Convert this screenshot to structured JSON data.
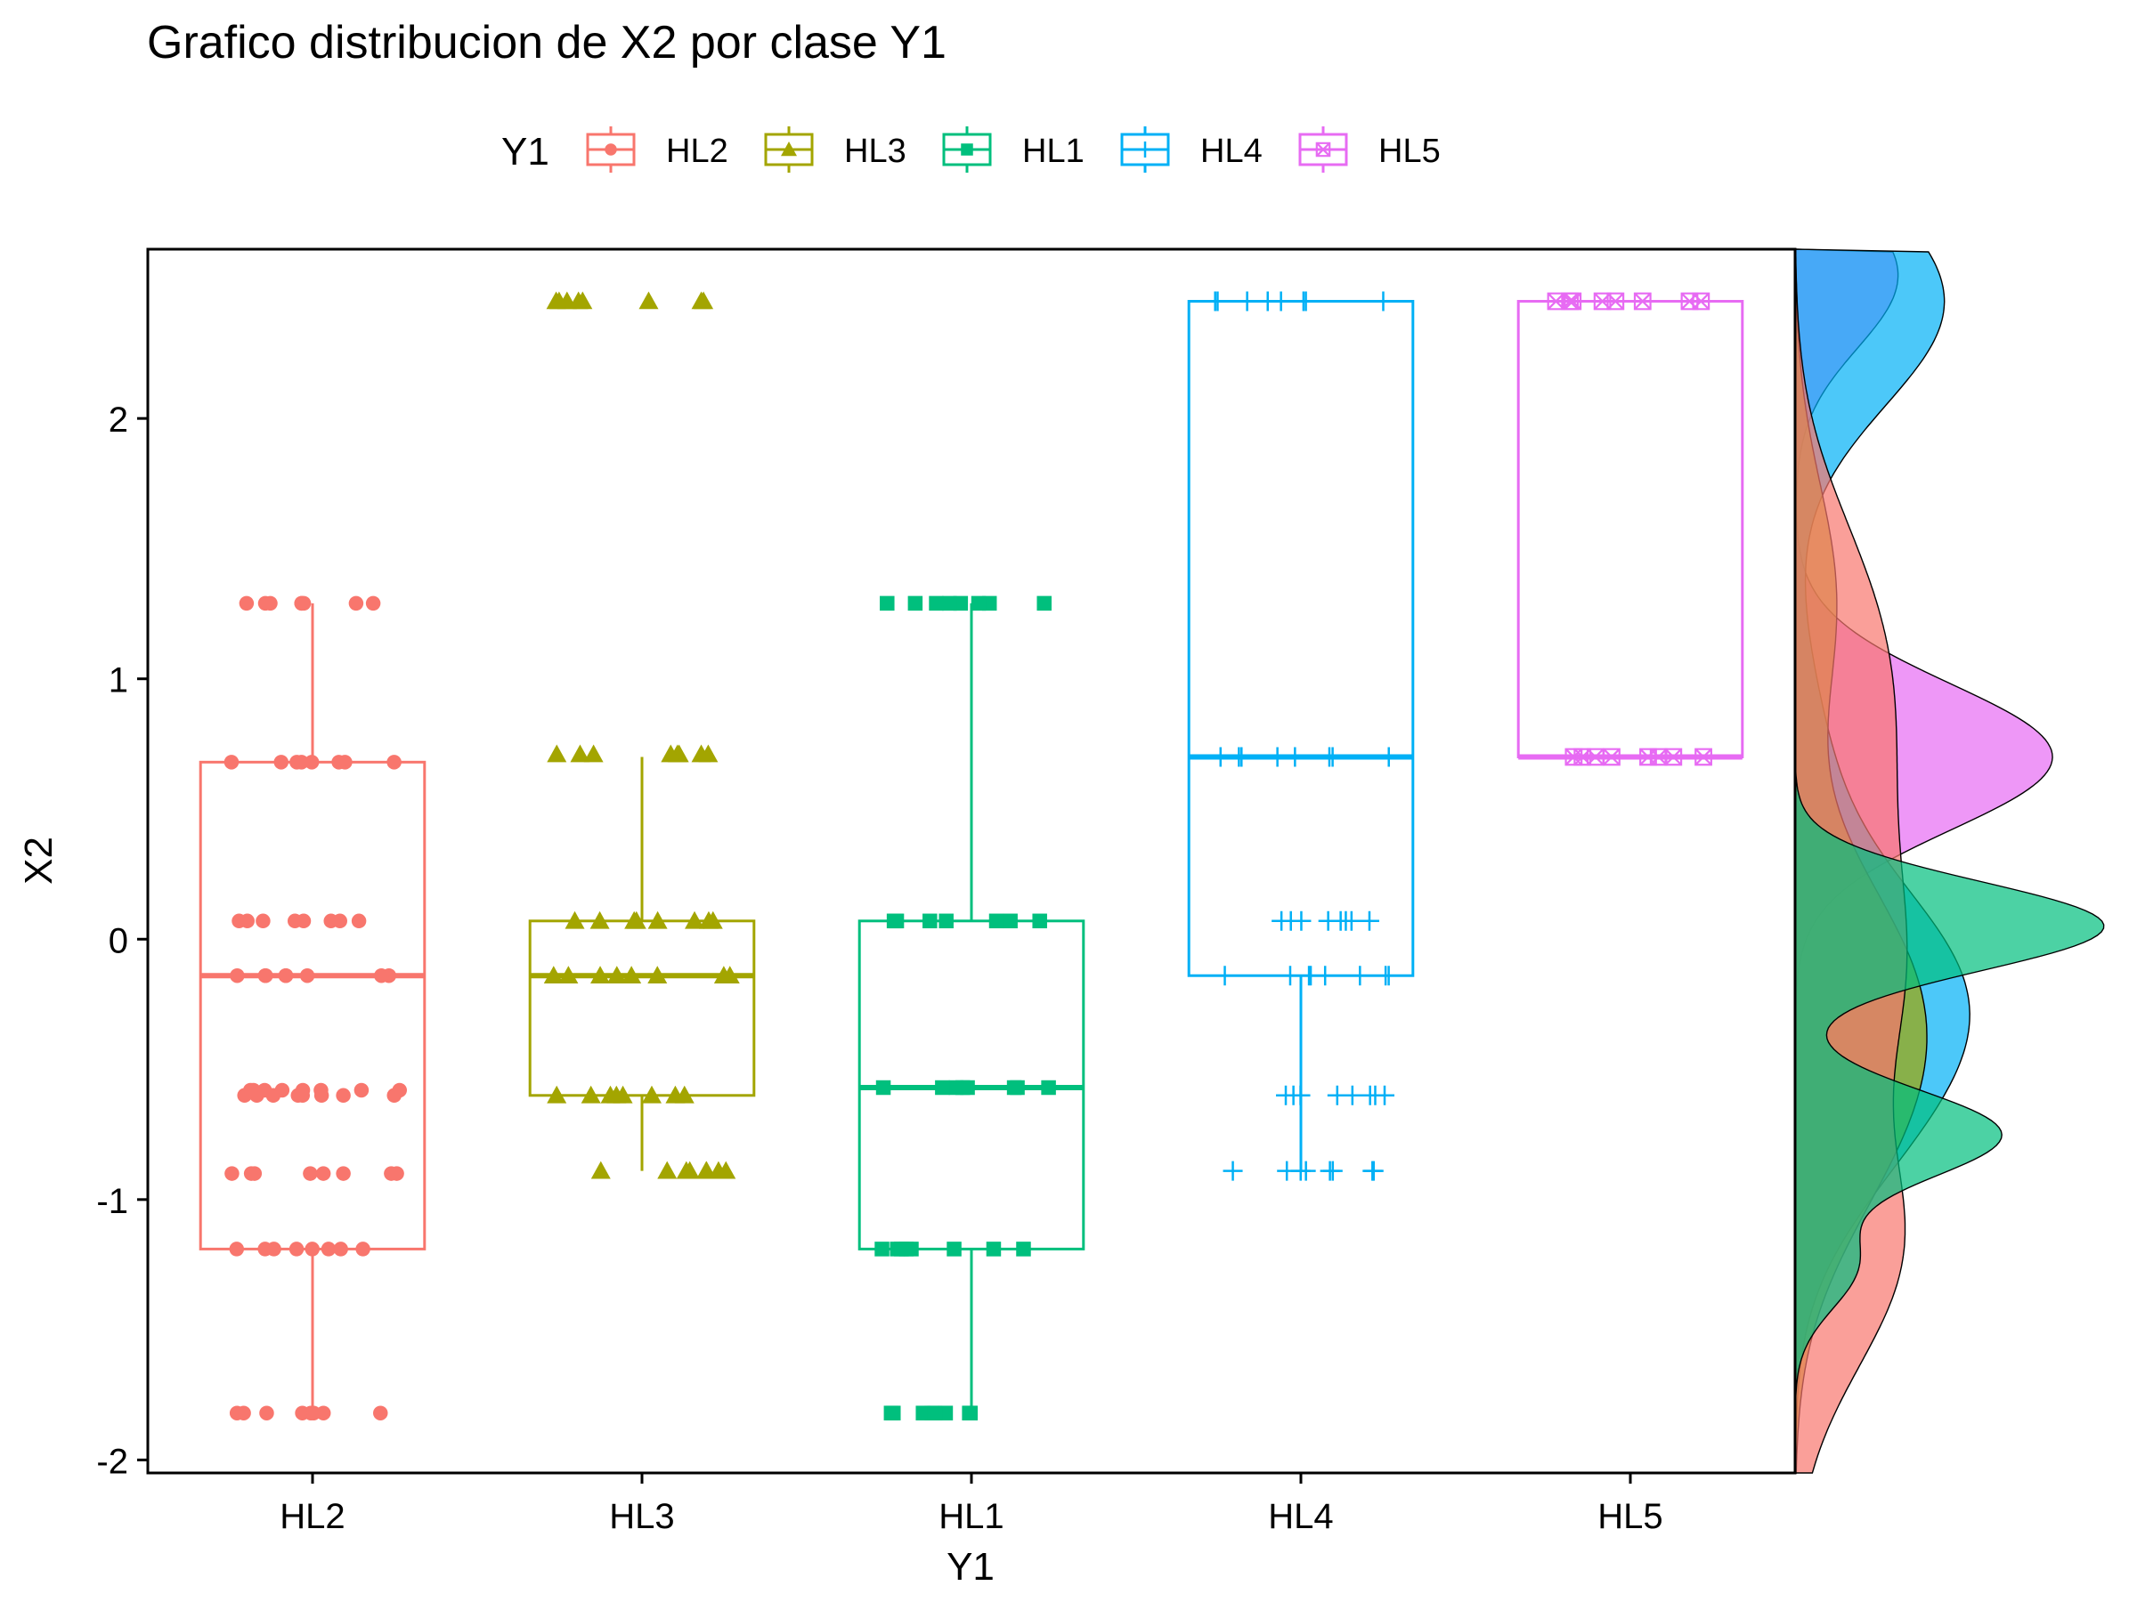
{
  "chart_data": {
    "type": "boxplot",
    "title": "Grafico distribucion de X2 por clase Y1",
    "xlabel": "Y1",
    "ylabel": "X2",
    "ylim": [
      -2.05,
      2.65
    ],
    "yticks": [
      -2,
      -1,
      0,
      1,
      2
    ],
    "tick_labels": [
      "-2",
      "-1",
      "0",
      "1",
      "2"
    ],
    "categories": [
      "HL2",
      "HL3",
      "HL1",
      "HL4",
      "HL5"
    ],
    "legend": {
      "title": "Y1",
      "position": "top",
      "entries": [
        "HL2",
        "HL3",
        "HL1",
        "HL4",
        "HL5"
      ]
    },
    "colors": {
      "HL2": "#F8766D",
      "HL3": "#A3A500",
      "HL1": "#00BF7D",
      "HL4": "#00B0F6",
      "HL5": "#E76BF3"
    },
    "markers": {
      "HL2": "circle",
      "HL3": "triangle",
      "HL1": "square",
      "HL4": "plus",
      "HL5": "square-cross"
    },
    "series": [
      {
        "name": "HL2",
        "whisker_low": -1.82,
        "q1": -1.19,
        "median": -0.14,
        "q3": 0.68,
        "whisker_high": 1.29,
        "points": [
          -1.82,
          -1.19,
          -0.9,
          -0.6,
          -0.58,
          -0.14,
          0.07,
          0.68,
          1.29
        ]
      },
      {
        "name": "HL3",
        "whisker_low": -0.89,
        "q1": -0.6,
        "median": -0.14,
        "q3": 0.07,
        "whisker_high": 0.7,
        "points": [
          -0.89,
          -0.6,
          -0.14,
          0.07,
          0.71,
          2.45
        ]
      },
      {
        "name": "HL1",
        "whisker_low": -1.82,
        "q1": -1.19,
        "median": -0.57,
        "q3": 0.07,
        "whisker_high": 1.29,
        "points": [
          -1.82,
          -1.19,
          -0.57,
          0.07,
          1.29
        ]
      },
      {
        "name": "HL4",
        "whisker_low": -0.89,
        "q1": -0.14,
        "median": 0.7,
        "q3": 2.45,
        "whisker_high": 2.45,
        "points": [
          -0.89,
          -0.6,
          -0.14,
          0.07,
          0.7,
          2.45
        ]
      },
      {
        "name": "HL5",
        "whisker_low": 0.7,
        "q1": 0.7,
        "median": 0.7,
        "q3": 2.45,
        "whisker_high": 2.45,
        "points": [
          0.7,
          2.45
        ]
      }
    ],
    "marginal_density": {
      "side": "right",
      "series": [
        {
          "name": "HL5",
          "peaks": [
            {
              "y": 2.55,
              "d": 1.0
            },
            {
              "y": 0.7,
              "d": 2.5
            }
          ],
          "spread": 0.28
        },
        {
          "name": "HL4",
          "peaks": [
            {
              "y": 2.45,
              "d": 1.45
            },
            {
              "y": -0.14,
              "d": 1.3
            },
            {
              "y": 0.7,
              "d": 0.25
            },
            {
              "y": -0.7,
              "d": 0.8
            }
          ],
          "spread": 0.4
        },
        {
          "name": "HL3",
          "peaks": [
            {
              "y": -0.14,
              "d": 0.9
            },
            {
              "y": -0.75,
              "d": 0.7
            },
            {
              "y": 1.3,
              "d": 0.4
            }
          ],
          "spread": 0.45
        },
        {
          "name": "HL2",
          "peaks": [
            {
              "y": -1.2,
              "d": 1.0
            },
            {
              "y": -0.14,
              "d": 0.9
            },
            {
              "y": 1.29,
              "d": 0.55
            },
            {
              "y": 0.68,
              "d": 0.6
            }
          ],
          "spread": 0.45
        },
        {
          "name": "HL1",
          "peaks": [
            {
              "y": 0.05,
              "d": 3.0
            },
            {
              "y": -0.75,
              "d": 2.0
            },
            {
              "y": -1.25,
              "d": 0.6
            }
          ],
          "spread": 0.17
        }
      ]
    }
  }
}
